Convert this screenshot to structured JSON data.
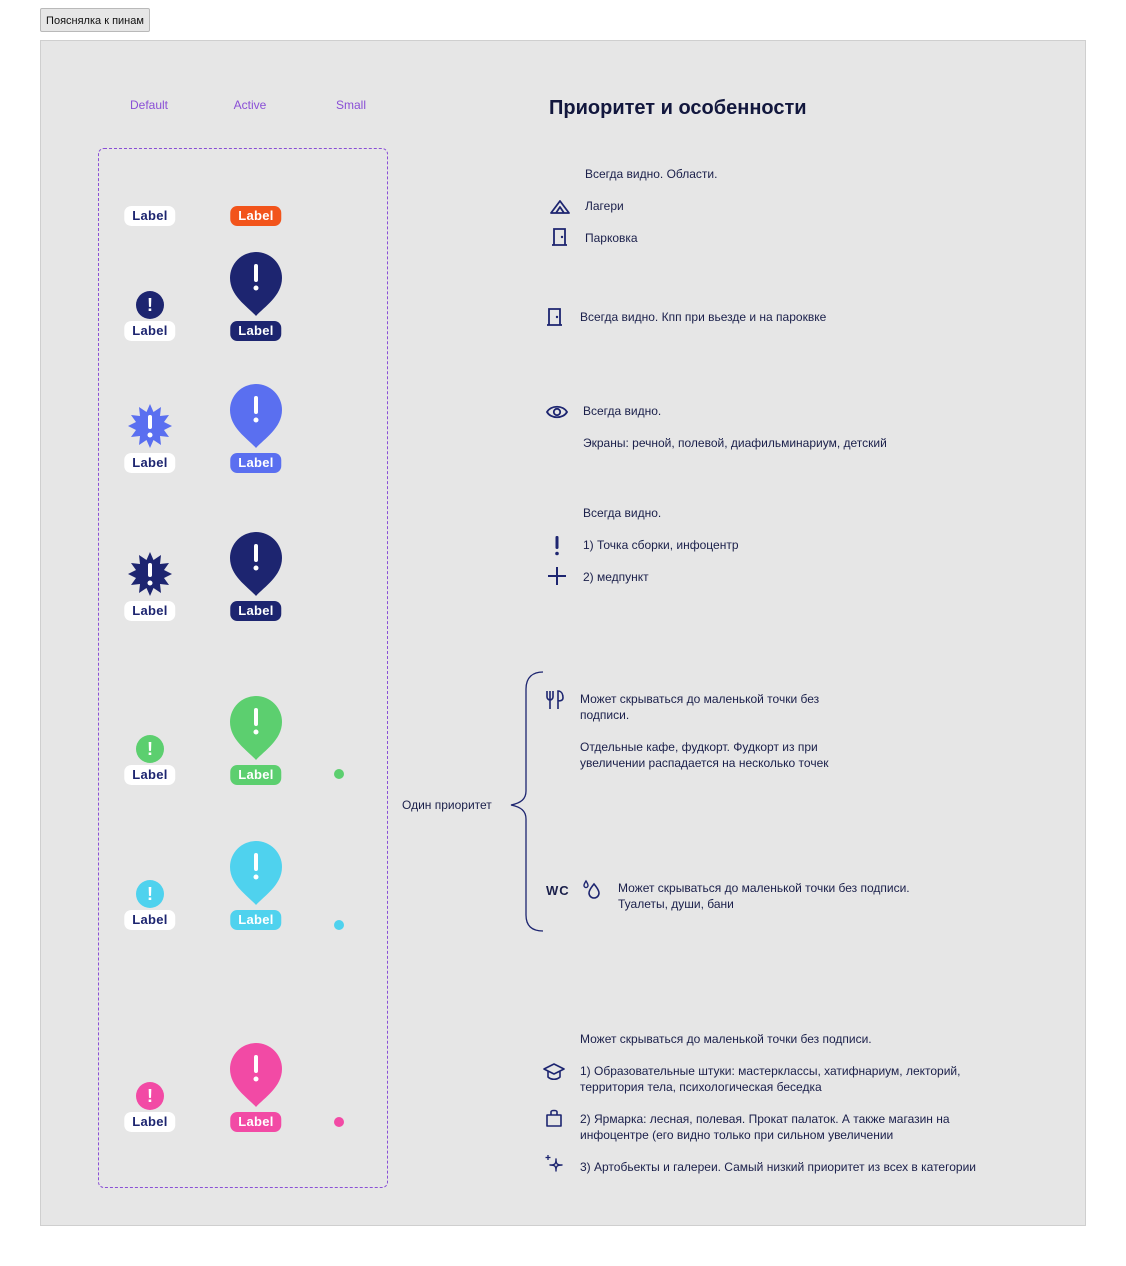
{
  "top_button": "Пояснялка к пинам",
  "columns": {
    "default": "Default",
    "active": "Active",
    "small": "Small"
  },
  "pin_label": "Label",
  "title": "Приоритет и особенности",
  "colors": {
    "navy": "#1d2570",
    "orange": "#f2541b",
    "blue": "#5a6ff0",
    "green": "#5ccf6f",
    "cyan": "#4fd2ee",
    "pink": "#f24aa5",
    "purple": "#8a4fd6"
  },
  "sections": {
    "areas": {
      "heading": "Всегда видно. Области.",
      "camps": "Лагери",
      "parking": "Парковка"
    },
    "kpp": {
      "text": "Всегда видно. Кпп при вьезде и на пароквке"
    },
    "screens": {
      "heading": "Всегда видно.",
      "text": "Экраны: речной, полевой, диафильминариум, детский"
    },
    "assembly": {
      "heading": "Всегда видно.",
      "item1": "1) Точка сборки, инфоцентр",
      "item2": "2) медпункт"
    },
    "food": {
      "line1": "Может скрываться до маленькой точки без",
      "line2": "подписи.",
      "line3": "Отдельные кафе, фудкорт. Фудкорт из при",
      "line4": "увеличении распадается на несколько точек"
    },
    "wc": {
      "icon_text": "WC",
      "line1": "Может скрываться до маленькой точки без подписи.",
      "line2": "Туалеты, души, бани"
    },
    "brace_label": "Один приоритет",
    "edu": {
      "heading": "Может скрываться до маленькой точки без подписи.",
      "item1_l1": "1) Образовательные штуки: мастерклассы, хатифнариум, лекторий,",
      "item1_l2": "территория тела, психологическая беседка",
      "item2_l1": "2) Ярмарка: лесная, полевая. Прокат палаток. А также магазин на",
      "item2_l2": "инфоцентре (его видно только при сильном увеличении",
      "item3": "3) Артобьекты и галереи. Самый низкий приоритет из всех в категории"
    }
  }
}
